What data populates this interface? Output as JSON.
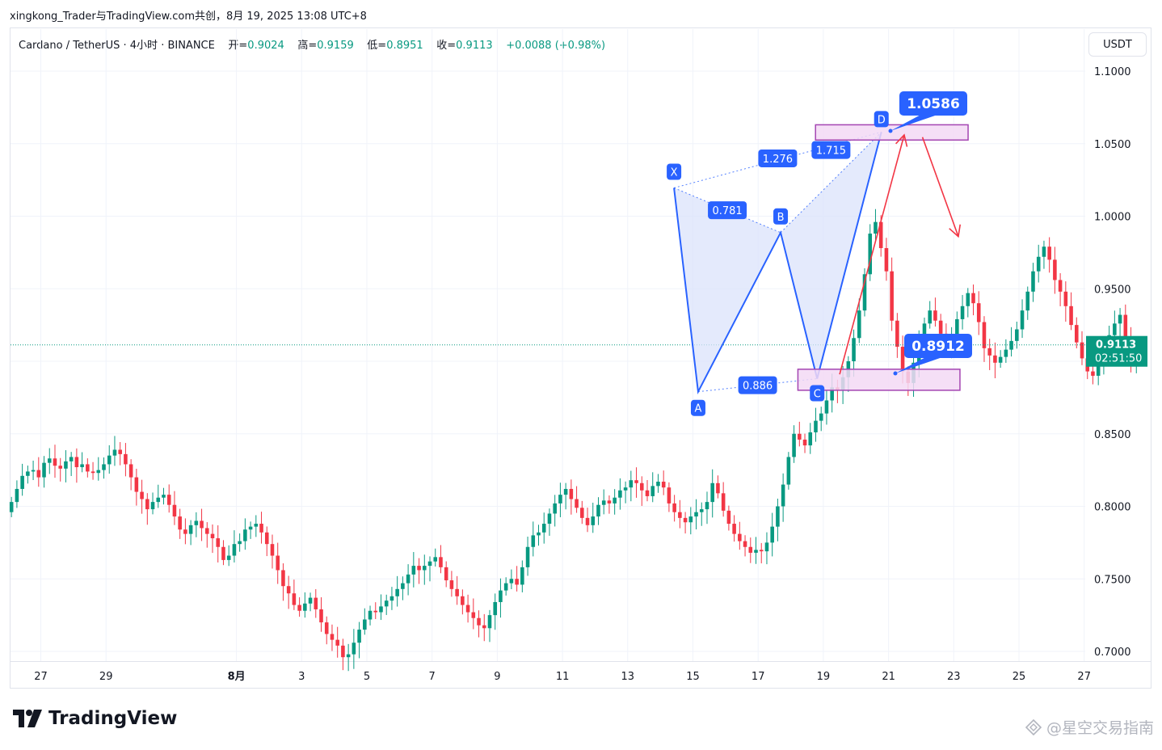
{
  "header": {
    "title_line": "xingkong_Trader与TradingView.com共创，8月 19, 2025 13:08 UTC+8"
  },
  "legend": {
    "symbol": "Cardano / TetherUS · 4小时 · BINANCE",
    "open_label": "开=",
    "open": "0.9024",
    "high_label": "高=",
    "high": "0.9159",
    "low_label": "低=",
    "low": "0.8951",
    "close_label": "收=",
    "close": "0.9113",
    "change": "+0.0088 (+0.98%)"
  },
  "currency_button": "USDT",
  "price_tag": {
    "price": "0.9113",
    "countdown": "02:51:50"
  },
  "brand": "TradingView",
  "watermark": "@星空交易指南",
  "colors": {
    "up": "#089981",
    "down": "#f23645",
    "pattern": "#2962ff",
    "pattern_fill": "#dbe3fb",
    "zone_fill": "#f3d9f5",
    "zone_border": "#a445b2",
    "projection": "#f23645"
  },
  "chart_data": {
    "type": "candlestick",
    "title": "",
    "xlabel": "",
    "ylabel": "",
    "ylim": [
      0.695,
      1.108
    ],
    "y_ticks": [
      "1.1000",
      "1.0500",
      "1.0000",
      "0.9500",
      "0.9000",
      "0.8500",
      "0.8000",
      "0.7500",
      "0.7000"
    ],
    "x_ticks": [
      "27",
      "29",
      "8月",
      "3",
      "5",
      "7",
      "9",
      "11",
      "13",
      "15",
      "17",
      "19",
      "21",
      "23",
      "25",
      "27"
    ],
    "x_tick_days": [
      -5,
      -3,
      1,
      3,
      5,
      7,
      9,
      11,
      13,
      15,
      17,
      19,
      21,
      23,
      25,
      27
    ],
    "bars_per_day": 6,
    "last_price": 0.9113,
    "candles_close": [
      0.803,
      0.812,
      0.821,
      0.824,
      0.825,
      0.82,
      0.83,
      0.833,
      0.828,
      0.826,
      0.831,
      0.834,
      0.827,
      0.829,
      0.824,
      0.823,
      0.825,
      0.829,
      0.835,
      0.839,
      0.836,
      0.829,
      0.82,
      0.81,
      0.805,
      0.798,
      0.803,
      0.806,
      0.808,
      0.801,
      0.793,
      0.784,
      0.781,
      0.787,
      0.79,
      0.785,
      0.781,
      0.778,
      0.772,
      0.763,
      0.766,
      0.774,
      0.776,
      0.784,
      0.786,
      0.788,
      0.782,
      0.774,
      0.766,
      0.756,
      0.745,
      0.74,
      0.732,
      0.728,
      0.733,
      0.737,
      0.729,
      0.72,
      0.712,
      0.708,
      0.704,
      0.696,
      0.698,
      0.706,
      0.715,
      0.722,
      0.728,
      0.727,
      0.731,
      0.735,
      0.738,
      0.743,
      0.747,
      0.753,
      0.759,
      0.756,
      0.759,
      0.762,
      0.765,
      0.758,
      0.749,
      0.743,
      0.738,
      0.732,
      0.727,
      0.723,
      0.718,
      0.716,
      0.725,
      0.734,
      0.742,
      0.747,
      0.75,
      0.746,
      0.758,
      0.772,
      0.78,
      0.782,
      0.788,
      0.795,
      0.802,
      0.808,
      0.812,
      0.805,
      0.799,
      0.792,
      0.787,
      0.793,
      0.801,
      0.804,
      0.802,
      0.806,
      0.811,
      0.813,
      0.818,
      0.816,
      0.811,
      0.807,
      0.814,
      0.817,
      0.813,
      0.802,
      0.796,
      0.792,
      0.789,
      0.793,
      0.796,
      0.798,
      0.803,
      0.816,
      0.809,
      0.797,
      0.788,
      0.781,
      0.776,
      0.772,
      0.768,
      0.77,
      0.769,
      0.775,
      0.786,
      0.8,
      0.815,
      0.834,
      0.85,
      0.846,
      0.842,
      0.851,
      0.859,
      0.864,
      0.873,
      0.882,
      0.88,
      0.889,
      0.9,
      0.916,
      0.935,
      0.96,
      0.988,
      0.996,
      0.978,
      0.962,
      0.928,
      0.91,
      0.893,
      0.885,
      0.899,
      0.913,
      0.926,
      0.935,
      0.928,
      0.919,
      0.908,
      0.914,
      0.929,
      0.938,
      0.947,
      0.94,
      0.927,
      0.909,
      0.904,
      0.899,
      0.903,
      0.908,
      0.914,
      0.922,
      0.935,
      0.948,
      0.962,
      0.972,
      0.979,
      0.97,
      0.956,
      0.948,
      0.938,
      0.925,
      0.913,
      0.902,
      0.893,
      0.89,
      0.898,
      0.91,
      0.918,
      0.926,
      0.932,
      0.914,
      0.9024,
      0.9113
    ],
    "pattern": {
      "name": "bat",
      "points": [
        {
          "label": "X",
          "day": 14.42,
          "price": 1.0195
        },
        {
          "label": "A",
          "day": 15.16,
          "price": 0.879
        },
        {
          "label": "B",
          "day": 17.69,
          "price": 0.9887
        },
        {
          "label": "C",
          "day": 18.81,
          "price": 0.888
        },
        {
          "label": "D",
          "day": 20.78,
          "price": 1.058
        }
      ],
      "ratios": [
        {
          "value": "1.276",
          "from": "X",
          "to": "D"
        },
        {
          "value": "0.781",
          "from": "X",
          "to": "B"
        },
        {
          "value": "1.715",
          "from": "B",
          "to": "D"
        },
        {
          "value": "0.886",
          "from": "A",
          "to": "C"
        }
      ]
    },
    "zones": [
      {
        "label": "1.0586",
        "day_start": 18.76,
        "day_end": 23.44,
        "price_high": 1.063,
        "price_low": 1.0525
      },
      {
        "label": "0.8912",
        "day_start": 18.22,
        "day_end": 23.19,
        "price_high": 0.8945,
        "price_low": 0.88
      }
    ],
    "projection": [
      {
        "day": 19.5,
        "price": 0.891
      },
      {
        "day": 21.48,
        "price": 1.056
      },
      {
        "day": 22.04,
        "price": 1.0545
      },
      {
        "day": 23.14,
        "price": 0.986
      }
    ]
  }
}
